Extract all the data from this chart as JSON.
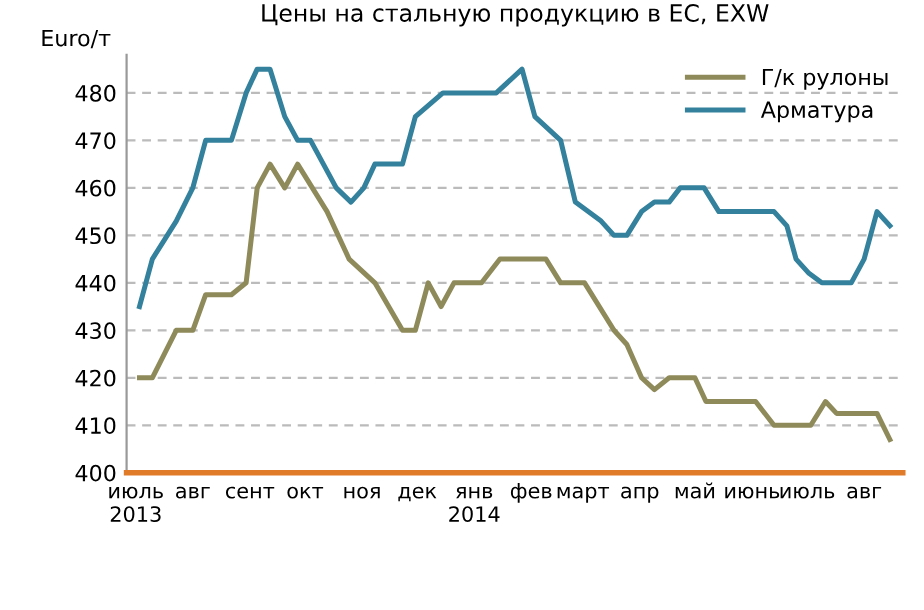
{
  "chart_data": {
    "type": "line",
    "title": "Цены на стальную продукцию в ЕС, EXW",
    "ylabel": "Euro/т",
    "series": [
      {
        "name": "Г/к рулоны",
        "color": "#8f8a5a",
        "x": [
          "2013-07-03",
          "2013-07-10",
          "2013-07-23",
          "2013-08-01",
          "2013-08-08",
          "2013-08-22",
          "2013-08-30",
          "2013-09-05",
          "2013-09-12",
          "2013-09-20",
          "2013-09-27",
          "2013-10-13",
          "2013-10-25",
          "2013-11-08",
          "2013-11-23",
          "2013-11-30",
          "2013-12-07",
          "2013-12-14",
          "2013-12-21",
          "2014-01-05",
          "2014-01-15",
          "2014-02-09",
          "2014-02-17",
          "2014-03-02",
          "2014-03-18",
          "2014-03-25",
          "2014-04-02",
          "2014-04-09",
          "2014-04-17",
          "2014-05-01",
          "2014-05-07",
          "2014-06-03",
          "2014-06-13",
          "2014-07-03",
          "2014-07-11",
          "2014-07-17",
          "2014-08-08",
          "2014-08-15"
        ],
        "values": [
          420,
          420,
          430,
          430,
          437.5,
          437.5,
          440,
          460,
          465,
          460,
          465,
          455,
          445,
          440,
          430,
          430,
          440,
          435,
          440,
          440,
          445,
          445,
          440,
          440,
          430,
          427,
          420,
          417.5,
          420,
          420,
          415,
          415,
          410,
          410,
          415,
          412.5,
          412.5,
          407
        ]
      },
      {
        "name": "Арматура",
        "color": "#33819c",
        "x": [
          "2013-07-03",
          "2013-07-10",
          "2013-07-23",
          "2013-08-01",
          "2013-08-08",
          "2013-08-22",
          "2013-08-30",
          "2013-09-05",
          "2013-09-12",
          "2013-09-20",
          "2013-09-27",
          "2013-10-04",
          "2013-10-18",
          "2013-10-26",
          "2013-11-02",
          "2013-11-08",
          "2013-11-23",
          "2013-11-30",
          "2013-12-15",
          "2014-01-13",
          "2014-01-27",
          "2014-02-03",
          "2014-02-17",
          "2014-02-25",
          "2014-03-11",
          "2014-03-18",
          "2014-03-25",
          "2014-04-02",
          "2014-04-09",
          "2014-04-17",
          "2014-04-23",
          "2014-05-06",
          "2014-05-14",
          "2014-06-13",
          "2014-06-20",
          "2014-06-25",
          "2014-07-02",
          "2014-07-09",
          "2014-07-25",
          "2014-08-01",
          "2014-08-08",
          "2014-08-15"
        ],
        "values": [
          435,
          445,
          453,
          460,
          470,
          470,
          480,
          485,
          485,
          475,
          470,
          470,
          460,
          457,
          460,
          465,
          465,
          475,
          480,
          480,
          485,
          475,
          470,
          457,
          453,
          450,
          450,
          455,
          457,
          457,
          460,
          460,
          455,
          455,
          452,
          445,
          442,
          440,
          440,
          445,
          455,
          452
        ]
      }
    ],
    "xlim": [
      "2013-06-26",
      "2014-08-22"
    ],
    "xticks": [
      {
        "value": "2013-07-01",
        "label": "июль\n2013"
      },
      {
        "value": "2013-08-01",
        "label": "авг"
      },
      {
        "value": "2013-09-01",
        "label": "сент"
      },
      {
        "value": "2013-10-01",
        "label": "окт"
      },
      {
        "value": "2013-11-01",
        "label": "ноя"
      },
      {
        "value": "2013-12-01",
        "label": "дек"
      },
      {
        "value": "2014-01-01",
        "label": "янв\n2014"
      },
      {
        "value": "2014-02-01",
        "label": "фев"
      },
      {
        "value": "2014-03-01",
        "label": "март"
      },
      {
        "value": "2014-04-01",
        "label": "апр"
      },
      {
        "value": "2014-05-01",
        "label": "май"
      },
      {
        "value": "2014-06-01",
        "label": "июнь"
      },
      {
        "value": "2014-07-01",
        "label": "июль"
      },
      {
        "value": "2014-08-01",
        "label": "авг"
      }
    ],
    "ylim": [
      400,
      488
    ],
    "yticks": [
      400,
      410,
      420,
      430,
      440,
      450,
      460,
      470,
      480
    ],
    "grid": "y",
    "legend": "top right",
    "marker": "none",
    "line_style": "solid"
  }
}
